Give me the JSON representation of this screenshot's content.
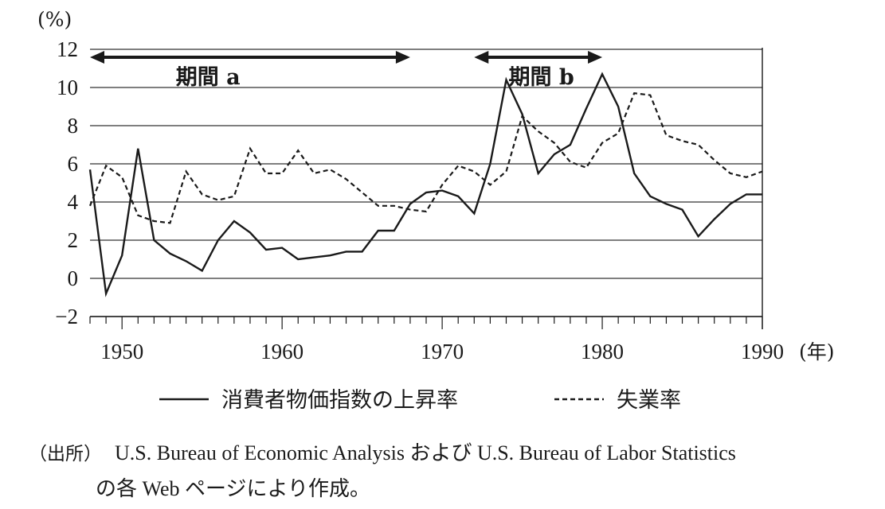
{
  "chart_data": {
    "type": "line",
    "y_unit": "(%)",
    "x_unit": "(年)",
    "x_ticks": [
      1950,
      1960,
      1970,
      1980,
      1990
    ],
    "y_ticks": [
      "12",
      "10",
      "8",
      "6",
      "4",
      "2",
      "0",
      "−2"
    ],
    "ylim": [
      -2,
      12
    ],
    "xlim": [
      1948,
      1990
    ],
    "grid": "horizontal",
    "x": [
      1948,
      1949,
      1950,
      1951,
      1952,
      1953,
      1954,
      1955,
      1956,
      1957,
      1958,
      1959,
      1960,
      1961,
      1962,
      1963,
      1964,
      1965,
      1966,
      1967,
      1968,
      1969,
      1970,
      1971,
      1972,
      1973,
      1974,
      1975,
      1976,
      1977,
      1978,
      1979,
      1980,
      1981,
      1982,
      1983,
      1984,
      1985,
      1986,
      1987,
      1988,
      1989,
      1990
    ],
    "series": [
      {
        "name": "消費者物価指数の上昇率",
        "style": "solid",
        "color": "#1a1a1a",
        "values": [
          5.7,
          -0.8,
          1.2,
          6.8,
          2.0,
          1.3,
          0.9,
          0.4,
          2.0,
          3.0,
          2.4,
          1.5,
          1.6,
          1.0,
          1.1,
          1.2,
          1.4,
          1.4,
          2.5,
          2.5,
          3.9,
          4.5,
          4.6,
          4.3,
          3.4,
          6.0,
          10.4,
          8.6,
          5.5,
          6.5,
          7.0,
          8.9,
          10.7,
          9.0,
          5.5,
          4.3,
          3.9,
          3.6,
          2.2,
          3.1,
          3.9,
          4.4,
          4.4
        ]
      },
      {
        "name": "失業率",
        "style": "dashed",
        "color": "#1a1a1a",
        "values": [
          3.8,
          5.9,
          5.3,
          3.3,
          3.0,
          2.9,
          5.6,
          4.4,
          4.1,
          4.3,
          6.8,
          5.5,
          5.5,
          6.7,
          5.5,
          5.7,
          5.2,
          4.5,
          3.8,
          3.8,
          3.6,
          3.5,
          4.9,
          5.9,
          5.6,
          4.9,
          5.6,
          8.5,
          7.7,
          7.1,
          6.1,
          5.8,
          7.1,
          7.6,
          9.7,
          9.6,
          7.5,
          7.2,
          7.0,
          6.2,
          5.5,
          5.3,
          5.6
        ]
      }
    ],
    "periods": [
      {
        "label": "期間 a",
        "start": 1948,
        "end": 1968
      },
      {
        "label": "期間 b",
        "start": 1972,
        "end": 1980
      }
    ],
    "legend": {
      "placement": "bottom"
    }
  },
  "source": {
    "label": "（出所）",
    "line1": "U.S. Bureau of Economic Analysis および U.S. Bureau of Labor Statistics",
    "line2": "の各 Web ページにより作成。"
  }
}
